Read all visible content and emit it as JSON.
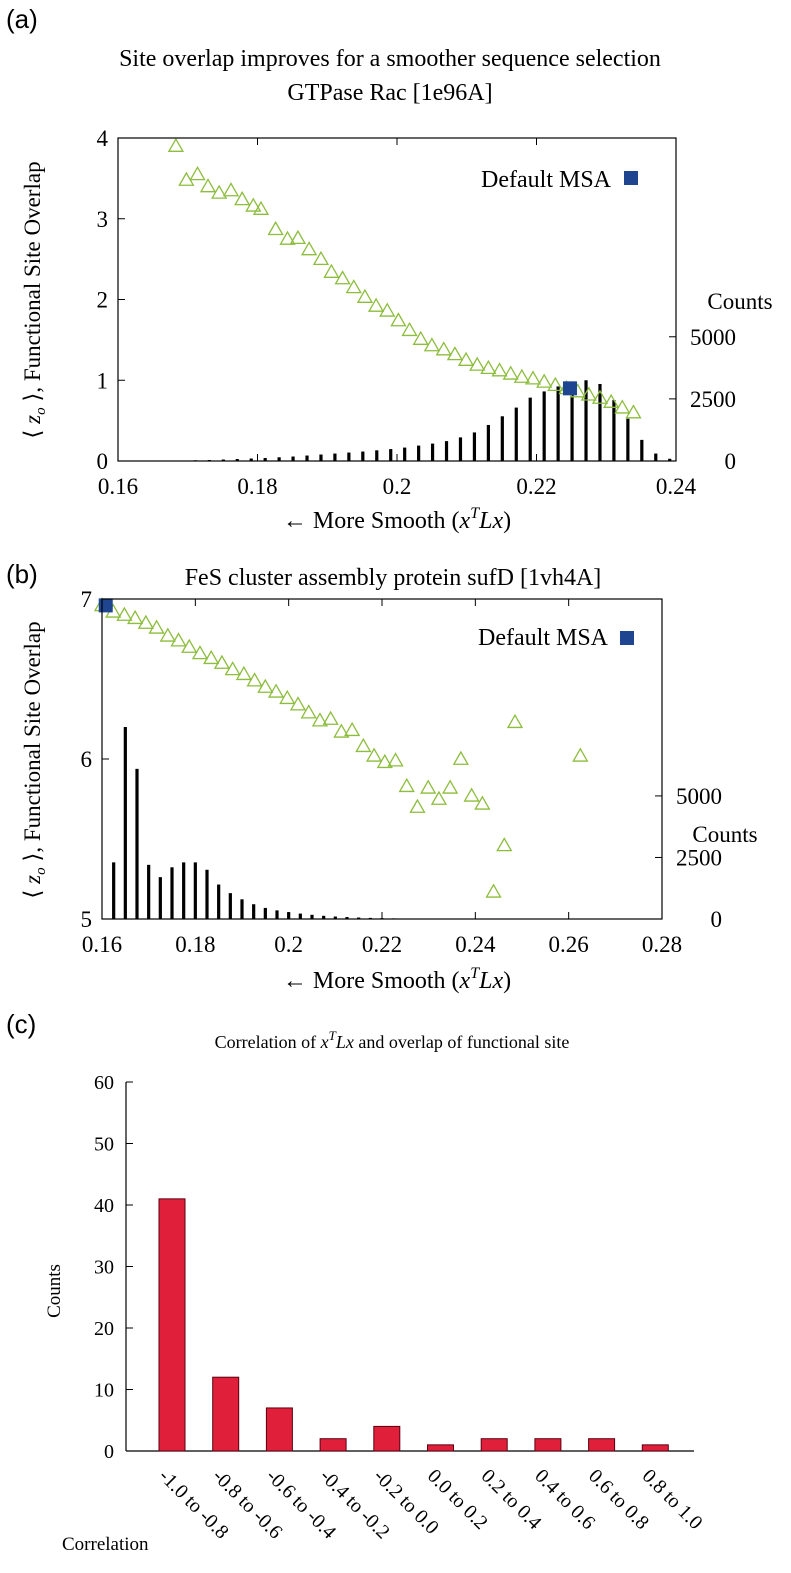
{
  "chart_data": [
    {
      "panel": "(a)",
      "type": "scatter",
      "title": "Site overlap improves for a smoother sequence selection",
      "subtitle": "GTPase Rac [1e96A]",
      "xlabel": "← More Smooth (x^T Lx)",
      "ylabel": "⟨ z_o ⟩, Functional Site Overlap",
      "y2label": "Counts",
      "xlim": [
        0.16,
        0.24
      ],
      "ylim": [
        0,
        4
      ],
      "y2lim": [
        0,
        13000
      ],
      "xticks": [
        "0.16",
        "0.18",
        "0.2",
        "0.22",
        "0.24"
      ],
      "yticks": [
        "0",
        "1",
        "2",
        "3",
        "4"
      ],
      "y2ticks": [
        "0",
        "2500",
        "5000"
      ],
      "y2tick_values": [
        0,
        2500,
        5000
      ],
      "legend": {
        "label": "Default MSA",
        "position": "top-right",
        "color": "#1f4591"
      },
      "default_msa": {
        "x": 0.2248,
        "y": 0.9
      },
      "series": [
        {
          "name": "triangles",
          "color": "#8cbd3c",
          "points": [
            [
              0.1683,
              3.9
            ],
            [
              0.1698,
              3.48
            ],
            [
              0.1714,
              3.55
            ],
            [
              0.1729,
              3.4
            ],
            [
              0.1745,
              3.32
            ],
            [
              0.1762,
              3.35
            ],
            [
              0.1778,
              3.24
            ],
            [
              0.1794,
              3.16
            ],
            [
              0.1805,
              3.12
            ],
            [
              0.1826,
              2.87
            ],
            [
              0.1843,
              2.75
            ],
            [
              0.1858,
              2.76
            ],
            [
              0.1874,
              2.62
            ],
            [
              0.1891,
              2.5
            ],
            [
              0.1906,
              2.34
            ],
            [
              0.1922,
              2.26
            ],
            [
              0.1938,
              2.15
            ],
            [
              0.1954,
              2.03
            ],
            [
              0.197,
              1.92
            ],
            [
              0.1986,
              1.86
            ],
            [
              0.2002,
              1.74
            ],
            [
              0.2018,
              1.62
            ],
            [
              0.2034,
              1.51
            ],
            [
              0.205,
              1.43
            ],
            [
              0.2067,
              1.38
            ],
            [
              0.2083,
              1.32
            ],
            [
              0.2099,
              1.25
            ],
            [
              0.2115,
              1.19
            ],
            [
              0.2131,
              1.15
            ],
            [
              0.2147,
              1.12
            ],
            [
              0.2163,
              1.08
            ],
            [
              0.2179,
              1.04
            ],
            [
              0.2195,
              1.02
            ],
            [
              0.2211,
              0.98
            ],
            [
              0.2227,
              0.94
            ],
            [
              0.2243,
              0.9
            ],
            [
              0.2259,
              0.86
            ],
            [
              0.2275,
              0.82
            ],
            [
              0.2291,
              0.78
            ],
            [
              0.2307,
              0.73
            ],
            [
              0.2323,
              0.66
            ],
            [
              0.2339,
              0.6
            ]
          ]
        },
        {
          "name": "counts histogram",
          "color": "#000000",
          "bars": [
            [
              0.1691,
              20
            ],
            [
              0.1711,
              30
            ],
            [
              0.1731,
              40
            ],
            [
              0.1751,
              60
            ],
            [
              0.1771,
              80
            ],
            [
              0.1791,
              100
            ],
            [
              0.1811,
              120
            ],
            [
              0.1831,
              150
            ],
            [
              0.1851,
              180
            ],
            [
              0.1871,
              220
            ],
            [
              0.1891,
              260
            ],
            [
              0.1911,
              300
            ],
            [
              0.1931,
              340
            ],
            [
              0.1951,
              380
            ],
            [
              0.1971,
              430
            ],
            [
              0.1991,
              480
            ],
            [
              0.2011,
              540
            ],
            [
              0.2031,
              620
            ],
            [
              0.2051,
              700
            ],
            [
              0.2071,
              800
            ],
            [
              0.2091,
              950
            ],
            [
              0.2111,
              1150
            ],
            [
              0.2131,
              1450
            ],
            [
              0.2151,
              1800
            ],
            [
              0.2171,
              2150
            ],
            [
              0.2191,
              2550
            ],
            [
              0.2211,
              2800
            ],
            [
              0.2231,
              3000
            ],
            [
              0.2251,
              3100
            ],
            [
              0.2271,
              3250
            ],
            [
              0.2291,
              3100
            ],
            [
              0.2311,
              2450
            ],
            [
              0.2331,
              1700
            ],
            [
              0.2351,
              850
            ],
            [
              0.2371,
              300
            ],
            [
              0.2391,
              90
            ]
          ]
        }
      ]
    },
    {
      "panel": "(b)",
      "type": "scatter",
      "title": "FeS cluster assembly protein sufD [1vh4A]",
      "xlabel": "← More Smooth (x^T Lx)",
      "ylabel": "⟨ z_o ⟩, Functional Site Overlap",
      "y2label": "Counts",
      "xlim": [
        0.16,
        0.28
      ],
      "ylim": [
        5,
        7
      ],
      "y2lim": [
        0,
        13000
      ],
      "xticks": [
        "0.16",
        "0.18",
        "0.2",
        "0.22",
        "0.24",
        "0.26",
        "0.28"
      ],
      "yticks": [
        "5",
        "6",
        "7"
      ],
      "y2ticks": [
        "0",
        "2500",
        "5000"
      ],
      "y2tick_values": [
        0,
        2500,
        5000
      ],
      "legend": {
        "label": "Default MSA",
        "position": "top-right",
        "color": "#1f4591"
      },
      "default_msa": {
        "x": 0.1608,
        "y": 6.96
      },
      "series": [
        {
          "name": "triangles",
          "color": "#8cbd3c",
          "points": [
            [
              0.16,
              6.96
            ],
            [
              0.1624,
              6.92
            ],
            [
              0.1648,
              6.9
            ],
            [
              0.1671,
              6.88
            ],
            [
              0.1694,
              6.85
            ],
            [
              0.1717,
              6.82
            ],
            [
              0.1741,
              6.77
            ],
            [
              0.1764,
              6.74
            ],
            [
              0.1787,
              6.7
            ],
            [
              0.181,
              6.66
            ],
            [
              0.1834,
              6.63
            ],
            [
              0.1857,
              6.6
            ],
            [
              0.188,
              6.56
            ],
            [
              0.1904,
              6.53
            ],
            [
              0.1927,
              6.49
            ],
            [
              0.195,
              6.45
            ],
            [
              0.1973,
              6.42
            ],
            [
              0.1997,
              6.38
            ],
            [
              0.202,
              6.34
            ],
            [
              0.2043,
              6.29
            ],
            [
              0.2067,
              6.24
            ],
            [
              0.209,
              6.25
            ],
            [
              0.2113,
              6.17
            ],
            [
              0.2136,
              6.18
            ],
            [
              0.216,
              6.08
            ],
            [
              0.2183,
              6.02
            ],
            [
              0.2206,
              5.98
            ],
            [
              0.2229,
              5.99
            ],
            [
              0.2253,
              5.83
            ],
            [
              0.2276,
              5.7
            ],
            [
              0.2299,
              5.82
            ],
            [
              0.2322,
              5.75
            ],
            [
              0.2346,
              5.82
            ],
            [
              0.2369,
              6.0
            ],
            [
              0.2392,
              5.77
            ],
            [
              0.2415,
              5.72
            ],
            [
              0.2439,
              5.17
            ],
            [
              0.2462,
              5.46
            ],
            [
              0.2485,
              6.23
            ],
            [
              0.2625,
              6.02
            ]
          ]
        },
        {
          "name": "counts histogram",
          "color": "#000000",
          "bars": [
            [
              0.1625,
              2300
            ],
            [
              0.165,
              7800
            ],
            [
              0.1675,
              6100
            ],
            [
              0.17,
              2200
            ],
            [
              0.1725,
              1700
            ],
            [
              0.175,
              2100
            ],
            [
              0.1775,
              2300
            ],
            [
              0.18,
              2300
            ],
            [
              0.1825,
              2000
            ],
            [
              0.185,
              1400
            ],
            [
              0.1875,
              1050
            ],
            [
              0.19,
              800
            ],
            [
              0.1925,
              600
            ],
            [
              0.195,
              450
            ],
            [
              0.1975,
              350
            ],
            [
              0.2,
              280
            ],
            [
              0.2025,
              220
            ],
            [
              0.205,
              170
            ],
            [
              0.2075,
              130
            ],
            [
              0.21,
              100
            ],
            [
              0.2125,
              80
            ],
            [
              0.215,
              60
            ],
            [
              0.2175,
              45
            ],
            [
              0.22,
              35
            ],
            [
              0.2225,
              25
            ],
            [
              0.225,
              20
            ],
            [
              0.2275,
              15
            ],
            [
              0.23,
              10
            ]
          ]
        }
      ]
    },
    {
      "panel": "(c)",
      "type": "bar",
      "title": "Correlation of x^T Lx and overlap of functional site",
      "xlabel": "Correlation",
      "ylabel": "Counts",
      "ylim": [
        0,
        60
      ],
      "yticks": [
        "0",
        "10",
        "20",
        "30",
        "40",
        "50",
        "60"
      ],
      "categories": [
        "-1.0 to -0.8",
        "-0.8 to -0.6",
        "-0.6 to -0.4",
        "-0.4 to -0.2",
        "-0.2 to 0.0",
        "0.0 to 0.2",
        "0.2 to 0.4",
        "0.4 to 0.6",
        "0.6 to 0.8",
        "0.8 to 1.0"
      ],
      "values": [
        41,
        12,
        7,
        2,
        4,
        1,
        2,
        2,
        2,
        1
      ],
      "color": "#e0203a"
    }
  ]
}
